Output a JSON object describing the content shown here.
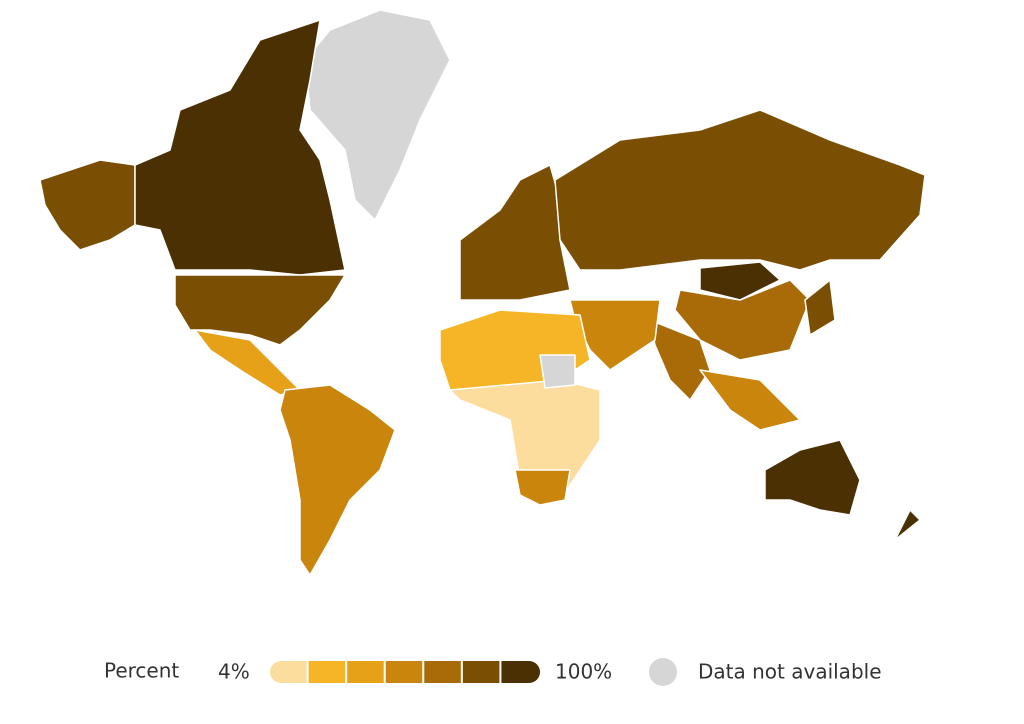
{
  "legend": {
    "title": "Percent",
    "min_label": "4%",
    "max_label": "100%",
    "colors": [
      "#fddd9e",
      "#f6b526",
      "#e6a119",
      "#c9850c",
      "#a86b07",
      "#7a4f03",
      "#4a3002"
    ],
    "na_label": "Data not available",
    "na_color": "#d6d6d6"
  }
}
